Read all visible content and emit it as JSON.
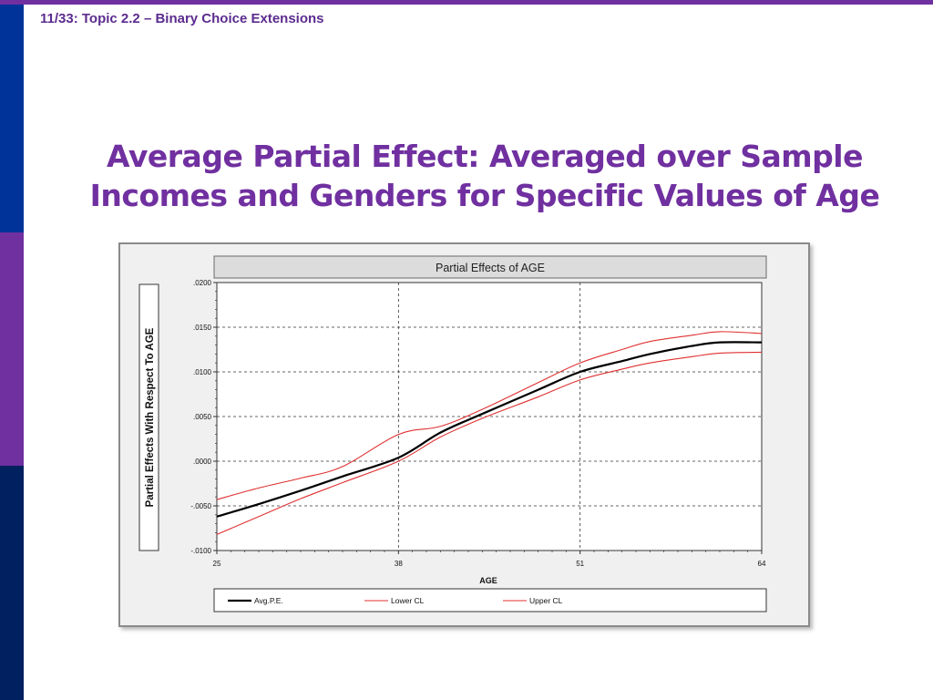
{
  "slide": {
    "header": "11/33: Topic 2.2 – Binary Choice Extensions",
    "title_line1": "Average Partial Effect: Averaged over Sample",
    "title_line2": "Incomes and Genders for Specific Values of Age",
    "colors": {
      "accent": "#7030a0",
      "header_text": "#5b2c8f",
      "sidebar_blue": "#003399",
      "sidebar_purple": "#7030a0",
      "sidebar_navy": "#002060"
    }
  },
  "chart_data": {
    "type": "line",
    "title": "Partial Effects of AGE",
    "xlabel": "AGE",
    "ylabel": "Partial Effects With Respect To AGE",
    "xlim": [
      25,
      64
    ],
    "ylim": [
      -0.01,
      0.02
    ],
    "x_ticks": [
      "25",
      "38",
      "51",
      "64"
    ],
    "y_ticks": [
      ".0200",
      ".0150",
      ".0100",
      ".0050",
      ".0000",
      "-.0050",
      "-.0100"
    ],
    "grid": true,
    "legend_position": "bottom",
    "series": [
      {
        "name": "Avg.P.E.",
        "color": "#000000",
        "x": [
          25,
          28,
          31,
          34,
          38,
          41,
          44,
          48,
          51,
          54,
          56,
          59,
          61,
          64
        ],
        "y": [
          -0.0062,
          -0.0048,
          -0.0033,
          -0.0017,
          0.0004,
          0.0032,
          0.0053,
          0.008,
          0.01,
          0.0112,
          0.012,
          0.0129,
          0.0133,
          0.0133
        ]
      },
      {
        "name": "Lower CL",
        "color": "#e03030",
        "x": [
          25,
          28,
          31,
          34,
          38,
          41,
          44,
          48,
          51,
          54,
          56,
          59,
          61,
          64
        ],
        "y": [
          -0.0082,
          -0.0062,
          -0.0042,
          -0.0024,
          0.0,
          0.0027,
          0.0048,
          0.0072,
          0.0091,
          0.0103,
          0.011,
          0.0117,
          0.0121,
          0.0122
        ]
      },
      {
        "name": "Upper CL",
        "color": "#e03030",
        "x": [
          25,
          28,
          31,
          34,
          38,
          41,
          44,
          48,
          51,
          54,
          56,
          59,
          61,
          64
        ],
        "y": [
          -0.0043,
          -0.003,
          -0.0019,
          -0.0006,
          0.003,
          0.0039,
          0.0058,
          0.0088,
          0.011,
          0.0125,
          0.0134,
          0.0141,
          0.0145,
          0.0143
        ]
      }
    ]
  }
}
